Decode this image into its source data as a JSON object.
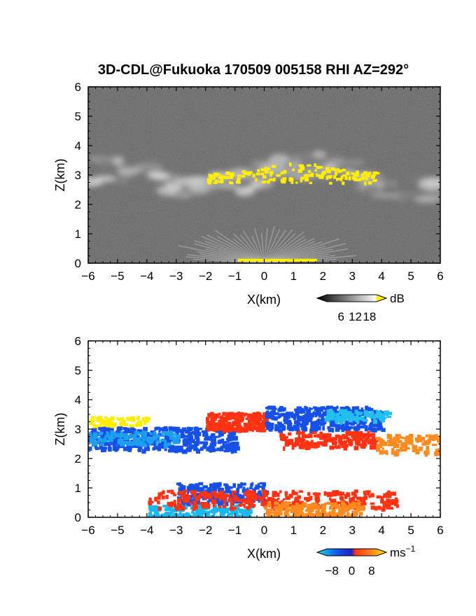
{
  "title": "3D-CDL@Fukuoka 170509 005158 RHI AZ=292°",
  "chart_data": [
    {
      "type": "heatmap",
      "field": "intensity",
      "xlabel": "X(km)",
      "ylabel": "Z(km)",
      "xlim": [
        -6,
        6
      ],
      "ylim": [
        0,
        6
      ],
      "xticks": [
        "−6",
        "−5",
        "−4",
        "−3",
        "−2",
        "−1",
        "0",
        "1",
        "2",
        "3",
        "4",
        "5",
        "6"
      ],
      "yticks": [
        "0",
        "1",
        "2",
        "3",
        "4",
        "5",
        "6"
      ],
      "colorbar": {
        "unit": "dB",
        "ticks": [
          "6",
          "12",
          "18"
        ],
        "range": [
          0,
          21
        ],
        "scale": "gray-to-yellow"
      },
      "features": [
        {
          "name": "cloud-layer-band",
          "x": [
            -6,
            6
          ],
          "z": [
            2.1,
            3.7
          ]
        },
        {
          "name": "high-intensity-yellow",
          "x": [
            -2.0,
            3.9
          ],
          "z": [
            2.6,
            3.5
          ],
          "value_db": 20
        },
        {
          "name": "near-ground-fan",
          "x": [
            -1.3,
            2.5
          ],
          "z": [
            0,
            1.2
          ]
        }
      ]
    },
    {
      "type": "heatmap",
      "field": "doppler-velocity",
      "xlabel": "X(km)",
      "ylabel": "Z(km)",
      "xlim": [
        -6,
        6
      ],
      "ylim": [
        0,
        6
      ],
      "xticks": [
        "−6",
        "−5",
        "−4",
        "−3",
        "−2",
        "−1",
        "0",
        "1",
        "2",
        "3",
        "4",
        "5",
        "6"
      ],
      "yticks": [
        "0",
        "1",
        "2",
        "3",
        "4",
        "5",
        "6"
      ],
      "colorbar": {
        "unit": "ms−1",
        "ticks": [
          "−8",
          "0",
          "8"
        ],
        "range": [
          -10,
          10
        ],
        "scale": "blue-red-yellow"
      },
      "features": [
        {
          "name": "upper-left-yellow",
          "x": [
            -6,
            -4.0
          ],
          "z": [
            3.15,
            3.45
          ],
          "velocity": 8
        },
        {
          "name": "upper-left-blue",
          "x": [
            -6,
            -1.0
          ],
          "z": [
            2.2,
            3.1
          ],
          "velocity": -6
        },
        {
          "name": "upper-center-red",
          "x": [
            -2.0,
            0.0
          ],
          "z": [
            3.0,
            3.6
          ],
          "velocity": 4
        },
        {
          "name": "upper-right-blue",
          "x": [
            0.0,
            4.0
          ],
          "z": [
            2.9,
            3.8
          ],
          "velocity": -7
        },
        {
          "name": "upper-right-red-orange",
          "x": [
            0.5,
            6.0
          ],
          "z": [
            2.2,
            3.0
          ],
          "velocity": 4
        },
        {
          "name": "lower-blue",
          "x": [
            -4.0,
            0.0
          ],
          "z": [
            0,
            1.2
          ],
          "velocity": -6
        },
        {
          "name": "lower-red",
          "x": [
            -4.0,
            4.5
          ],
          "z": [
            0.3,
            1.1
          ],
          "velocity": 3
        },
        {
          "name": "lower-orange",
          "x": [
            0.0,
            3.5
          ],
          "z": [
            0,
            0.6
          ],
          "velocity": 7
        }
      ]
    }
  ],
  "colors": {
    "yellow": "#ffee00",
    "orange": "#ff8a1e",
    "red": "#ff3314",
    "blue": "#1650e6",
    "cyan": "#14c8ea"
  }
}
